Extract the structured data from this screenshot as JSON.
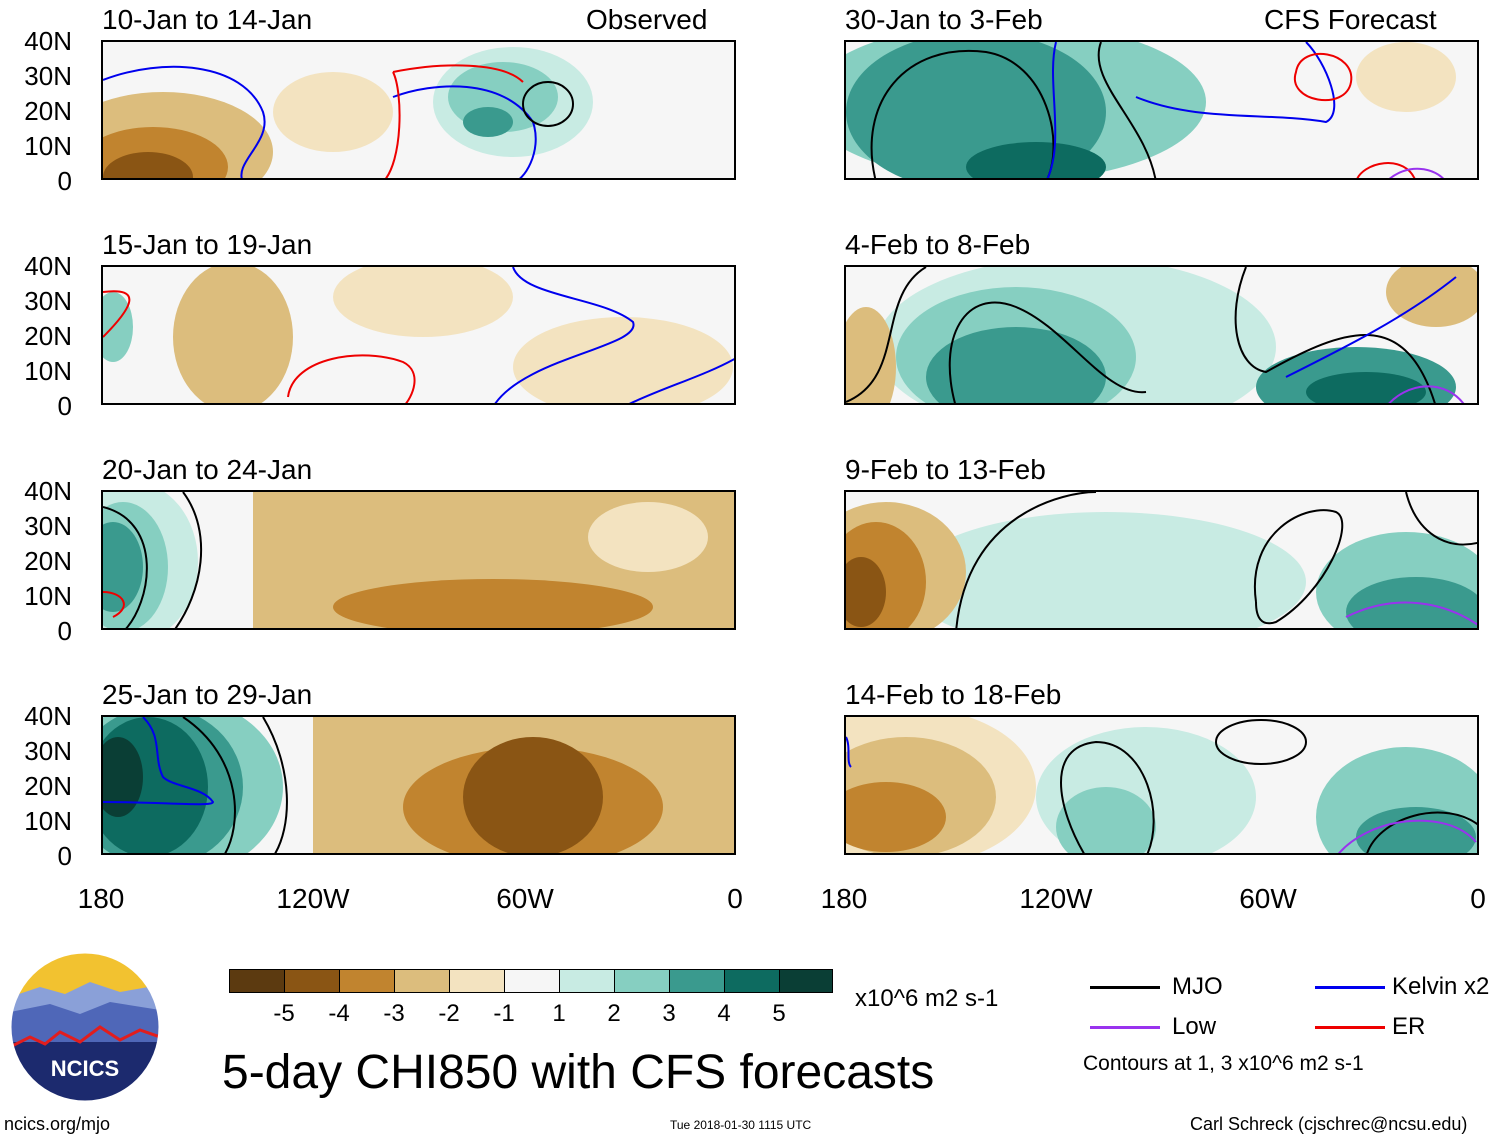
{
  "left_header_tag": "Observed",
  "right_header_tag": "CFS Forecast",
  "panels_left": [
    {
      "title": "10-Jan to 14-Jan"
    },
    {
      "title": "15-Jan to 19-Jan"
    },
    {
      "title": "20-Jan to 24-Jan"
    },
    {
      "title": "25-Jan to 29-Jan"
    }
  ],
  "panels_right": [
    {
      "title": "30-Jan to 3-Feb"
    },
    {
      "title": "4-Feb to 8-Feb"
    },
    {
      "title": "9-Feb to 13-Feb"
    },
    {
      "title": "14-Feb to 18-Feb"
    }
  ],
  "lat_labels": [
    "40N",
    "30N",
    "20N",
    "10N",
    "0"
  ],
  "lon_labels": [
    "180",
    "120W",
    "60W",
    "0"
  ],
  "colorbar": {
    "units": "x10^6 m2 s-1",
    "tick_labels": [
      "-5",
      "-4",
      "-3",
      "-2",
      "-1",
      "1",
      "2",
      "3",
      "4",
      "5"
    ],
    "colors": [
      "#5c3a10",
      "#8a5514",
      "#c1842f",
      "#dcbd7d",
      "#f3e3c0",
      "#f6f6f6",
      "#c8ebe3",
      "#86cfc1",
      "#3a9a8e",
      "#0d6b60",
      "#0a3e35"
    ]
  },
  "legend": {
    "items": [
      {
        "label": "MJO",
        "color": "#000000"
      },
      {
        "label": "Kelvin x2",
        "color": "#0000ee"
      },
      {
        "label": "Low",
        "color": "#9933ee"
      },
      {
        "label": "ER",
        "color": "#ee0000"
      }
    ],
    "note": "Contours at 1, 3 x10^6 m2 s-1"
  },
  "title": "5-day CHI850 with CFS forecasts",
  "logo_text": "NCICS",
  "footer": {
    "left": "ncics.org/mjo",
    "center": "Tue 2018-01-30 1115 UTC",
    "right": "Carl Schreck (cjschrec@ncsu.edu)"
  }
}
